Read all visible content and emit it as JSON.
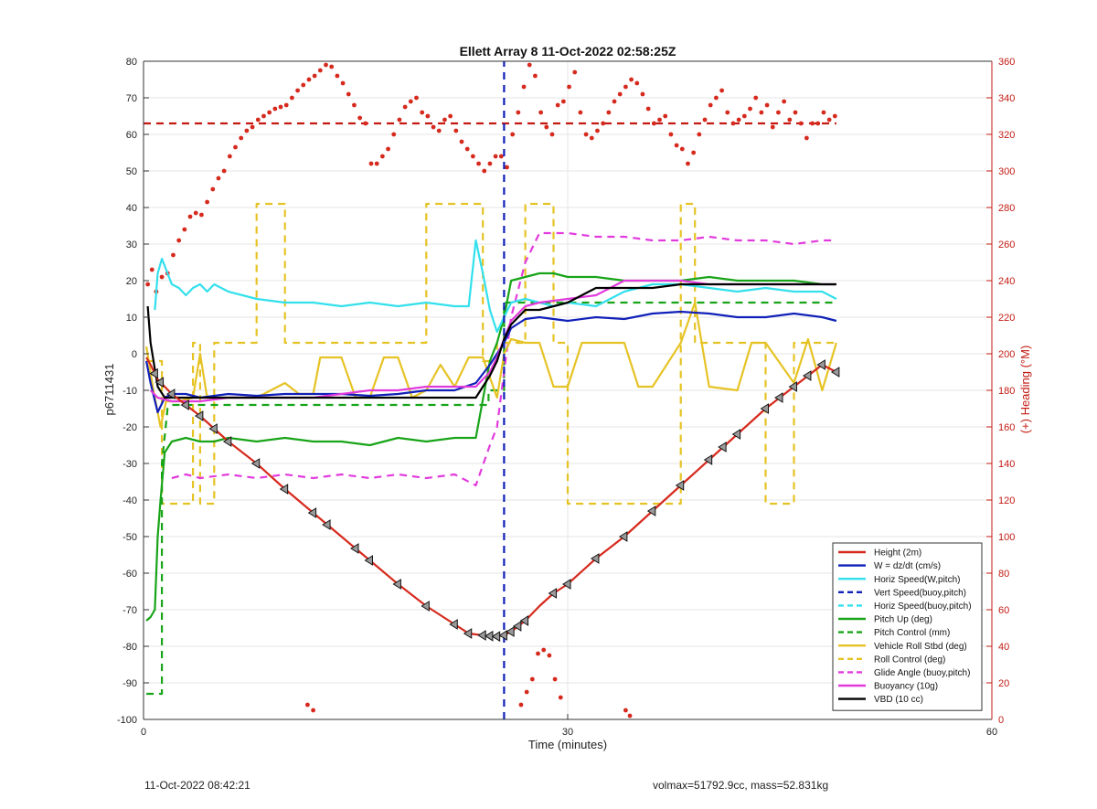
{
  "chart_data": {
    "type": "line",
    "title": "Ellett Array 8 11-Oct-2022 02:58:25Z",
    "xlabel": "Time (minutes)",
    "ylabel_left": "p6711431",
    "ylabel_right": "(+) Heading (°M)",
    "xlim": [
      0,
      60
    ],
    "ylim_left": [
      -100,
      80
    ],
    "ylim_right": [
      0,
      360
    ],
    "xticks": [
      "0",
      "30",
      "60"
    ],
    "yticks_left": [
      "80",
      "70",
      "60",
      "50",
      "40",
      "30",
      "20",
      "10",
      "0",
      "-10",
      "-20",
      "-30",
      "-40",
      "-50",
      "-60",
      "-70",
      "-80",
      "-90",
      "-100"
    ],
    "yticks_right": [
      "360",
      "340",
      "320",
      "300",
      "280",
      "260",
      "240",
      "220",
      "200",
      "180",
      "160",
      "140",
      "120",
      "100",
      "80",
      "60",
      "40",
      "20",
      "0"
    ],
    "grid": true,
    "legend_position": "bottom-right",
    "legend": [
      "Height (2m)",
      "W = dz/dt (cm/s)",
      "Horiz Speed(W,pitch)",
      "Vert Speed(buoy,pitch)",
      "Horiz Speed(buoy,pitch)",
      "Pitch Up (deg)",
      "Pitch Control (mm)",
      "Vehicle Roll Stbd (deg)",
      "Roll Control (deg)",
      "Glide Angle (buoy,pitch)",
      "Buoyancy (10g)",
      "VBD (10 cc)"
    ],
    "series": [
      {
        "name": "Height (2m)",
        "color": "#d62a1e",
        "style": "solid",
        "axis": "left",
        "x": [
          0.2,
          0.5,
          1,
          2,
          4,
          6,
          8,
          10,
          12,
          14,
          16,
          18,
          20,
          22,
          23,
          24,
          24.5,
          25,
          25.5,
          26,
          26.5,
          27,
          28,
          29,
          30,
          32,
          34,
          36,
          38,
          40,
          42,
          44,
          46,
          48,
          49
        ],
        "y": [
          -1,
          -3,
          -7,
          -11,
          -17,
          -24,
          -30,
          -37,
          -43.5,
          -50,
          -56.5,
          -63,
          -69,
          -74,
          -76.5,
          -77,
          -77.2,
          -77.3,
          -77,
          -76,
          -74.5,
          -73,
          -69,
          -65.5,
          -63,
          -56,
          -50,
          -43,
          -36,
          -29,
          -22,
          -15,
          -9,
          -3,
          -5
        ]
      },
      {
        "name": "W = dz/dt (cm/s)",
        "color": "#1020b8",
        "style": "solid",
        "axis": "left",
        "x": [
          0.2,
          0.5,
          1,
          1.5,
          2,
          3,
          4,
          6,
          8,
          10,
          12,
          14,
          16,
          18,
          20,
          22,
          23.5,
          24.5,
          25,
          25.5,
          26,
          27,
          28,
          30,
          32,
          34,
          36,
          38,
          40,
          42,
          44,
          46,
          48,
          49
        ],
        "y": [
          -2,
          -8,
          -16,
          -12,
          -11,
          -11,
          -12,
          -11,
          -11.5,
          -11,
          -11,
          -11,
          -11.5,
          -11,
          -10,
          -10,
          -8,
          -3,
          0,
          3,
          7,
          9.5,
          10,
          9,
          10,
          9.5,
          11,
          11.5,
          11,
          10,
          10,
          11,
          10,
          9
        ]
      },
      {
        "name": "Horiz Speed(W,pitch)",
        "color": "#33e0ec",
        "style": "solid",
        "axis": "left",
        "x": [
          0.8,
          1,
          1.3,
          1.7,
          2,
          2.5,
          3,
          3.5,
          4,
          4.5,
          5,
          6,
          7,
          8,
          10,
          12,
          14,
          16,
          18,
          20,
          22,
          23,
          23.5,
          24,
          24.5,
          25,
          25.5,
          26,
          27,
          28,
          29,
          30,
          32,
          34,
          36,
          38,
          40,
          42,
          44,
          46,
          48,
          49
        ],
        "y": [
          12,
          22,
          26,
          22,
          19,
          18,
          16,
          18,
          19,
          17,
          19,
          17,
          16,
          15,
          14,
          14,
          13,
          14,
          13,
          14,
          13,
          13,
          31,
          22,
          12,
          6,
          10,
          14,
          15,
          14,
          13,
          14,
          13,
          17,
          19,
          19,
          18,
          17,
          18,
          17,
          17,
          15
        ]
      },
      {
        "name": "Vert Speed(buoy,pitch)",
        "color": "#1020b8",
        "style": "dashed",
        "axis": "left",
        "x": [
          25.5,
          25.5
        ],
        "y": [
          -100,
          80
        ]
      },
      {
        "name": "Horiz Speed(buoy,pitch)",
        "color": "#33e0ec",
        "style": "dashed",
        "axis": "left",
        "x": [],
        "y": []
      },
      {
        "name": "Pitch Up (deg)",
        "color": "#18a418",
        "style": "solid",
        "axis": "left",
        "x": [
          0.2,
          0.5,
          0.8,
          1,
          1.2,
          1.5,
          2,
          3,
          4,
          5,
          6,
          8,
          10,
          12,
          14,
          16,
          18,
          20,
          22,
          23.5,
          24.5,
          25,
          25.5,
          26,
          27,
          28,
          29,
          30,
          32,
          34,
          36,
          38,
          40,
          42,
          44,
          46,
          48,
          49
        ],
        "y": [
          -73,
          -72,
          -70,
          -50,
          -40,
          -27,
          -24,
          -23,
          -24,
          -24,
          -23,
          -24,
          -23,
          -24,
          -24,
          -25,
          -23,
          -24,
          -23,
          -23,
          -2,
          3,
          10,
          20,
          21,
          22,
          22,
          21,
          21,
          20,
          20,
          20,
          21,
          20,
          20,
          20,
          19,
          19
        ]
      },
      {
        "name": "Pitch Control (mm)",
        "color": "#18a418",
        "style": "dashed",
        "axis": "left",
        "x": [
          0.2,
          1.3,
          1.3,
          1.7,
          2,
          24.4,
          24.4,
          25.5,
          25.5,
          49
        ],
        "y": [
          -93,
          -93,
          -30,
          -15,
          -14,
          -14,
          -10,
          -10,
          14,
          14
        ]
      },
      {
        "name": "Vehicle Roll Stbd (deg)",
        "color": "#e6c325",
        "style": "solid",
        "axis": "left",
        "x": [
          0.2,
          0.7,
          1.2,
          1.6,
          2.5,
          3.5,
          4,
          4.5,
          5,
          6,
          7,
          8,
          10,
          11,
          12,
          12.5,
          14,
          15,
          16,
          17,
          18,
          19,
          20,
          21,
          22,
          23,
          24,
          25,
          25.5,
          26,
          27,
          28,
          29,
          30,
          31,
          32,
          34,
          35,
          36,
          38,
          39,
          40,
          42,
          43,
          44,
          46,
          47,
          48,
          49
        ],
        "y": [
          2,
          -10,
          -20,
          -13,
          -13,
          -12,
          0,
          -12,
          -12,
          -12,
          -12,
          -12,
          -8,
          -11,
          -11,
          -1,
          -1,
          -12,
          -12,
          -1,
          -1,
          -12,
          -10,
          -3,
          -9,
          -1,
          -1,
          -12,
          0,
          4,
          3,
          3,
          -9,
          -9,
          3,
          3,
          3,
          -9,
          -9,
          3,
          14,
          -9,
          -10,
          3,
          3,
          -8,
          4,
          -10,
          3
        ]
      },
      {
        "name": "Roll Control (deg)",
        "color": "#e6c325",
        "style": "dashed",
        "axis": "left",
        "x": [
          0.2,
          1.3,
          1.3,
          3.5,
          3.5,
          4,
          4,
          5,
          5,
          8,
          8,
          10,
          10,
          20,
          20,
          24,
          24,
          25,
          25,
          27,
          27,
          29,
          29,
          30,
          30,
          38,
          38,
          39,
          39,
          44,
          44,
          46,
          46,
          49
        ],
        "y": [
          -2,
          -2,
          -41,
          -41,
          3,
          3,
          -41,
          -41,
          3,
          3,
          41,
          41,
          3,
          3,
          41,
          41,
          -2,
          -2,
          3,
          3,
          41,
          41,
          3,
          3,
          -41,
          -41,
          41,
          41,
          3,
          3,
          -41,
          -41,
          3,
          3
        ]
      },
      {
        "name": "Glide Angle (buoy,pitch)",
        "color": "#e23bdd",
        "style": "dashed",
        "axis": "left",
        "x": [
          2,
          3,
          4,
          6,
          8,
          10,
          12,
          14,
          16,
          18,
          20,
          22,
          23.5,
          24.5,
          25,
          25.5,
          26,
          27,
          28,
          30,
          32,
          34,
          36,
          38,
          40,
          42,
          44,
          46,
          48,
          49
        ],
        "y": [
          -34,
          -33,
          -34,
          -33,
          -34,
          -33,
          -34,
          -33,
          -34,
          -33,
          -34,
          -33,
          -36,
          -25,
          -20,
          -5,
          10,
          25,
          33,
          33,
          32,
          32,
          31,
          31,
          32,
          31,
          31,
          30,
          31,
          31
        ]
      },
      {
        "name": "Buoyancy (10g)",
        "color": "#e23bdd",
        "style": "solid",
        "axis": "left",
        "x": [
          0.5,
          1,
          2,
          4,
          6,
          8,
          10,
          12,
          14,
          16,
          18,
          20,
          22,
          23.5,
          24.5,
          25,
          25.5,
          26,
          27,
          28,
          30,
          32,
          34,
          36,
          38,
          40,
          42,
          44,
          46,
          48,
          49
        ],
        "y": [
          -10,
          -12,
          -13,
          -13,
          -12,
          -12,
          -12,
          -12,
          -11,
          -10,
          -10,
          -9,
          -9,
          -9,
          -5,
          -1,
          4,
          9,
          13,
          14,
          15,
          16,
          20,
          20,
          20,
          19,
          19,
          19,
          19,
          19,
          19
        ]
      },
      {
        "name": "VBD (10 cc)",
        "color": "#000000",
        "style": "solid",
        "axis": "left",
        "x": [
          0.3,
          0.5,
          1,
          1.5,
          2,
          4,
          6,
          8,
          10,
          12,
          14,
          16,
          18,
          20,
          22,
          23.5,
          24.5,
          25,
          25.5,
          26,
          27,
          28,
          30,
          32,
          34,
          36,
          38,
          40,
          42,
          44,
          46,
          48,
          49
        ],
        "y": [
          13,
          3,
          -9,
          -12,
          -12,
          -12,
          -12,
          -12,
          -12,
          -12,
          -12,
          -12,
          -12,
          -12,
          -12,
          -12,
          -6,
          -2,
          4,
          8,
          12,
          12,
          14,
          18,
          18,
          18,
          19,
          19,
          19,
          19,
          19,
          19,
          19
        ]
      },
      {
        "name": "Heading",
        "color": "#d62a1e",
        "style": "dots",
        "axis": "right",
        "x": [
          0.3,
          0.6,
          0.9,
          1.3,
          1.7,
          2.1,
          2.5,
          2.9,
          3.3,
          3.7,
          4.1,
          4.5,
          4.9,
          5.3,
          5.7,
          6.1,
          6.5,
          6.9,
          7.3,
          7.7,
          8.1,
          8.5,
          8.9,
          9.3,
          9.7,
          10.1,
          10.5,
          10.9,
          11.3,
          11.7,
          12.1,
          12.5,
          12.9,
          13.3,
          13.7,
          14.1,
          14.5,
          14.9,
          15.3,
          15.7,
          16.1,
          16.5,
          16.9,
          17.3,
          17.7,
          18.1,
          18.5,
          18.9,
          19.3,
          19.7,
          20.1,
          20.5,
          20.9,
          21.3,
          21.7,
          22.1,
          22.5,
          22.9,
          23.3,
          23.7,
          24.1,
          24.5,
          24.9,
          25.3,
          25.7,
          26.1,
          26.5,
          26.9,
          27.3,
          27.7,
          28.1,
          28.5,
          28.9,
          29.3,
          29.7,
          30.1,
          30.5,
          30.9,
          31.3,
          31.7,
          32.1,
          32.5,
          32.9,
          33.3,
          33.7,
          34.1,
          34.5,
          34.9,
          35.3,
          35.7,
          36.1,
          36.5,
          36.9,
          37.3,
          37.7,
          38.1,
          38.5,
          38.9,
          39.3,
          39.7,
          40.1,
          40.5,
          40.9,
          41.3,
          41.7,
          42.1,
          42.5,
          42.9,
          43.3,
          43.7,
          44.1,
          44.5,
          44.9,
          45.3,
          45.7,
          46.1,
          46.5,
          46.9,
          47.3,
          47.7,
          48.1,
          48.5,
          48.9
        ],
        "y": [
          238,
          246,
          234,
          242,
          244,
          254,
          262,
          268,
          275,
          277,
          276,
          283,
          290,
          296,
          300,
          308,
          313,
          318,
          322,
          324,
          328,
          330,
          332,
          334,
          335,
          336,
          340,
          344,
          347,
          350,
          352,
          355,
          358,
          357,
          352,
          348,
          342,
          336,
          329,
          326,
          304,
          304,
          308,
          312,
          320,
          328,
          335,
          338,
          340,
          332,
          330,
          324,
          322,
          328,
          330,
          322,
          316,
          312,
          308,
          304,
          300,
          304,
          308,
          308,
          302,
          320,
          332,
          346,
          358,
          352,
          332,
          324,
          320,
          336,
          338,
          346,
          354,
          332,
          320,
          318,
          322,
          326,
          332,
          338,
          342,
          346,
          350,
          348,
          342,
          334,
          326,
          328,
          330,
          320,
          314,
          312,
          304,
          310,
          320,
          328,
          336,
          340,
          344,
          332,
          326,
          328,
          330,
          334,
          340,
          332,
          336,
          324,
          332,
          338,
          328,
          332,
          326,
          318,
          326,
          326,
          332,
          328,
          330
        ],
        "extra_points": [
          [
            11.6,
            8
          ],
          [
            12.0,
            5
          ],
          [
            26.7,
            8
          ],
          [
            27.1,
            15
          ],
          [
            27.5,
            22
          ],
          [
            27.9,
            36
          ],
          [
            28.3,
            38
          ],
          [
            28.7,
            35
          ],
          [
            29.1,
            22
          ],
          [
            29.5,
            12
          ],
          [
            34.1,
            5
          ],
          [
            34.4,
            2
          ]
        ]
      },
      {
        "name": "Heading reference",
        "color": "#c21a12",
        "style": "dashed",
        "axis": "right",
        "x": [
          0,
          49
        ],
        "y": [
          326,
          326
        ]
      }
    ],
    "triangle_markers_x": [
      0.8,
      1.2,
      2,
      3,
      4,
      5,
      6,
      8,
      10,
      12,
      13,
      15,
      16,
      18,
      20,
      22,
      23,
      24,
      24.5,
      25,
      25.5,
      26,
      26.5,
      27,
      29,
      30,
      32,
      34,
      36,
      38,
      40,
      41,
      42,
      44,
      45,
      46,
      47,
      48,
      49
    ]
  },
  "footer": {
    "left": "11-Oct-2022 08:42:21",
    "right": "volmax=51792.9cc, mass=52.831kg"
  }
}
